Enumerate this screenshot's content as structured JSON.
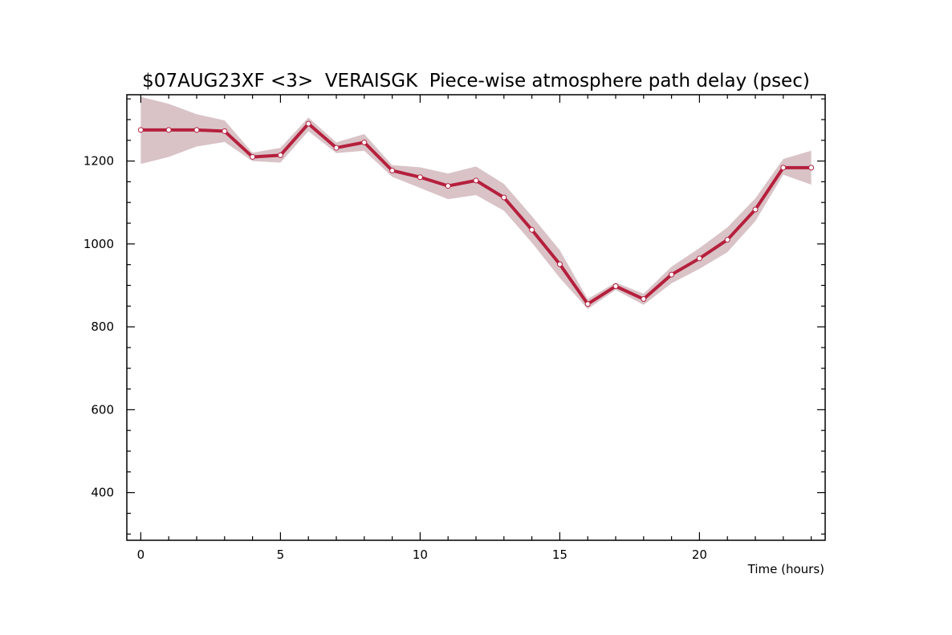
{
  "chart_data": {
    "type": "line",
    "title": "$07AUG23XF <3>  VERAISGK  Piece-wise atmosphere path delay (psec)",
    "xlabel": "Time (hours)",
    "ylabel": "",
    "xlim": [
      -0.5,
      24.5
    ],
    "ylim": [
      285,
      1360
    ],
    "x_ticks": [
      "0",
      "5",
      "10",
      "15",
      "20"
    ],
    "y_ticks": [
      "400",
      "600",
      "800",
      "1000",
      "1200"
    ],
    "x_tick_values": [
      0,
      5,
      10,
      15,
      20
    ],
    "y_tick_values": [
      400,
      600,
      800,
      1000,
      1200
    ],
    "grid": false,
    "colors": {
      "line": "#b5203d",
      "band": "#d9c3c7",
      "marker_fill": "#ffffff"
    },
    "series": [
      {
        "x": [
          0,
          1,
          2,
          3,
          4,
          5,
          6,
          7,
          8,
          9,
          10,
          11,
          12,
          13,
          14,
          15,
          16,
          17,
          18,
          19,
          20,
          21,
          22,
          23,
          24
        ],
        "y": [
          1275,
          1275,
          1275,
          1272,
          1210,
          1214,
          1290,
          1232,
          1245,
          1177,
          1161,
          1140,
          1153,
          1112,
          1034,
          951,
          855,
          898,
          867,
          926,
          965,
          1010,
          1083,
          1184,
          1184
        ],
        "upper": [
          1355,
          1338,
          1313,
          1298,
          1220,
          1232,
          1305,
          1245,
          1265,
          1190,
          1185,
          1170,
          1187,
          1145,
          1067,
          985,
          867,
          907,
          880,
          945,
          990,
          1040,
          1110,
          1205,
          1225
        ],
        "lower": [
          1193,
          1210,
          1235,
          1246,
          1200,
          1196,
          1272,
          1219,
          1225,
          1162,
          1135,
          1108,
          1118,
          1080,
          1003,
          918,
          843,
          889,
          853,
          905,
          940,
          980,
          1055,
          1167,
          1143
        ]
      }
    ]
  }
}
